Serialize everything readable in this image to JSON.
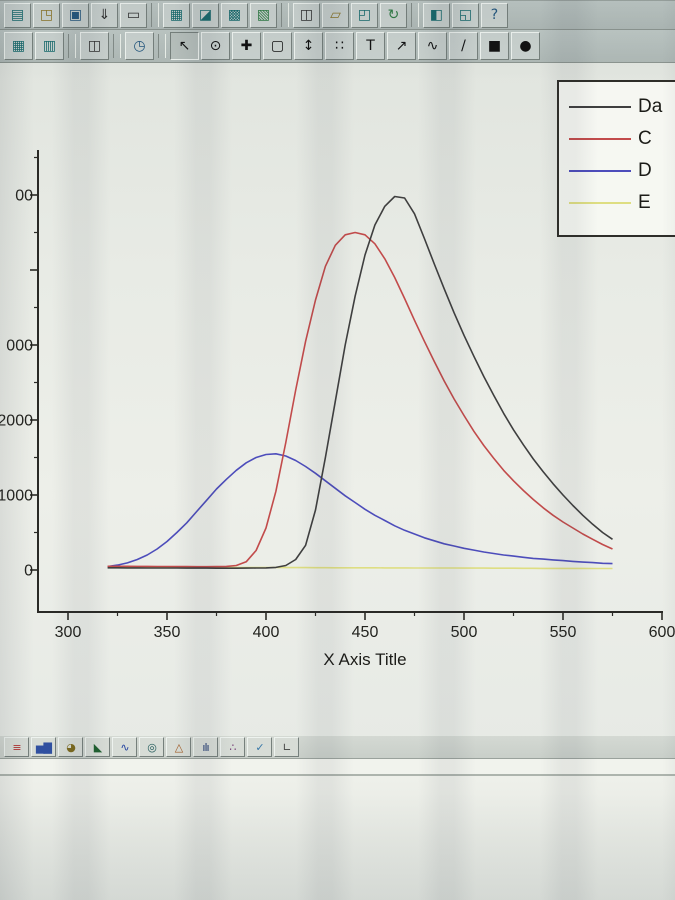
{
  "toolbars": {
    "standard": {
      "buttons": [
        {
          "name": "new-project-button",
          "glyph": "▤",
          "color": "#16696c"
        },
        {
          "name": "open-project-button",
          "glyph": "◳",
          "color": "#8a7428"
        },
        {
          "name": "save-project-button",
          "glyph": "▣",
          "color": "#24577e"
        },
        {
          "name": "import-ascii-button",
          "glyph": "⇓",
          "color": "#2e2e2e"
        },
        {
          "name": "print-button",
          "glyph": "▭",
          "color": "#2e2e2e"
        },
        {
          "sep": true
        },
        {
          "name": "new-worksheet-button",
          "glyph": "▦",
          "color": "#16696c"
        },
        {
          "name": "new-graph-button",
          "glyph": "◪",
          "color": "#16696c"
        },
        {
          "name": "new-matrix-button",
          "glyph": "▩",
          "color": "#16696c"
        },
        {
          "name": "new-excel-button",
          "glyph": "▧",
          "color": "#2f7a44"
        },
        {
          "sep": true
        },
        {
          "name": "copy-button",
          "glyph": "◫",
          "color": "#2e2e2e"
        },
        {
          "name": "paste-button",
          "glyph": "▱",
          "color": "#8a7428"
        },
        {
          "name": "duplicate-button",
          "glyph": "◰",
          "color": "#16696c"
        },
        {
          "name": "refresh-button",
          "glyph": "↻",
          "color": "#2f7a44"
        },
        {
          "sep": true
        },
        {
          "name": "fit-page-button",
          "glyph": "◧",
          "color": "#16696c"
        },
        {
          "name": "full-screen-button",
          "glyph": "◱",
          "color": "#16696c"
        },
        {
          "name": "help-button",
          "glyph": "?",
          "color": "#24577e"
        }
      ]
    },
    "tools": {
      "buttons": [
        {
          "name": "worksheet-grid-button",
          "glyph": "▦",
          "color": "#16696c"
        },
        {
          "name": "column-grid-button",
          "glyph": "▥",
          "color": "#16696c"
        },
        {
          "sep": true
        },
        {
          "name": "new-layout-button",
          "glyph": "◫",
          "color": "#2e2e2e"
        },
        {
          "sep": true
        },
        {
          "name": "recent-clock-button",
          "glyph": "◷",
          "color": "#24577e"
        },
        {
          "sep": true
        },
        {
          "name": "pointer-tool-button",
          "glyph": "↖",
          "color": "#111111",
          "selected": true
        },
        {
          "name": "zoom-tool-button",
          "glyph": "⊙",
          "color": "#111111"
        },
        {
          "name": "data-reader-tool-button",
          "glyph": "✚",
          "color": "#111111"
        },
        {
          "name": "data-selector-tool-button",
          "glyph": "▢",
          "color": "#111111"
        },
        {
          "name": "vertical-translate-tool-button",
          "glyph": "↕",
          "color": "#111111"
        },
        {
          "name": "region-mask-tool-button",
          "glyph": "∷",
          "color": "#111111"
        },
        {
          "name": "text-tool-button",
          "glyph": "T",
          "color": "#111111"
        },
        {
          "name": "draw-arrow-tool-button",
          "glyph": "↗",
          "color": "#111111"
        },
        {
          "name": "draw-curve-tool-button",
          "glyph": "∿",
          "color": "#111111"
        },
        {
          "name": "draw-line-tool-button",
          "glyph": "/",
          "color": "#111111"
        },
        {
          "name": "draw-rectangle-tool-button",
          "glyph": "■",
          "color": "#111111"
        },
        {
          "name": "draw-circle-tool-button",
          "glyph": "●",
          "color": "#111111"
        }
      ]
    },
    "graph": {
      "buttons": [
        {
          "name": "line-plot-button",
          "glyph": "≡",
          "color": "#b03030"
        },
        {
          "name": "column-plot-button",
          "glyph": "▅▇",
          "color": "#3050a0"
        },
        {
          "name": "pie-chart-button",
          "glyph": "◕",
          "color": "#7c6a1e"
        },
        {
          "name": "area-plot-button",
          "glyph": "◣",
          "color": "#206030"
        },
        {
          "name": "spline-plot-button",
          "glyph": "∿",
          "color": "#2040a0"
        },
        {
          "name": "contour-plot-button",
          "glyph": "◎",
          "color": "#1e5858"
        },
        {
          "name": "ternary-plot-button",
          "glyph": "△",
          "color": "#a05820"
        },
        {
          "name": "histogram-plot-button",
          "glyph": "ılı",
          "color": "#203870"
        },
        {
          "name": "scatter-plot-button",
          "glyph": "∴",
          "color": "#6d2f6d"
        },
        {
          "name": "polar-plot-button",
          "glyph": "✓",
          "color": "#3878a8"
        },
        {
          "name": "axes-plot-button",
          "glyph": "∟",
          "color": "#3e3e3e"
        }
      ]
    }
  },
  "chart": {
    "x_axis_title": "X Axis Title",
    "x_ticks": [
      300,
      350,
      400,
      450,
      500,
      550,
      600
    ],
    "y_ticks": [
      {
        "value": 5000,
        "label": "00"
      },
      {
        "value": 4000,
        "label": ""
      },
      {
        "value": 3000,
        "label": "000"
      },
      {
        "value": 2000,
        "label": "2000"
      },
      {
        "value": 1000,
        "label": "1000"
      },
      {
        "value": 0,
        "label": "0"
      }
    ],
    "legend": [
      {
        "label": "Da",
        "color": "#3f3f3f"
      },
      {
        "label": "C",
        "color": "#c24b4b"
      },
      {
        "label": "D",
        "color": "#4d4dbb"
      },
      {
        "label": "E",
        "color": "#dede82"
      }
    ]
  },
  "chart_data": {
    "type": "line",
    "title": "",
    "xlabel": "X Axis Title",
    "ylabel": "",
    "xlim": [
      285,
      601
    ],
    "ylim": [
      -500,
      5600
    ],
    "x_major_ticks": [
      300,
      350,
      400,
      450,
      500,
      550,
      600
    ],
    "y_major_ticks": [
      0,
      1000,
      2000,
      3000,
      4000,
      5000
    ],
    "grid": false,
    "legend_position": "top-right",
    "x": [
      320,
      325,
      330,
      335,
      340,
      345,
      350,
      355,
      360,
      365,
      370,
      375,
      380,
      385,
      390,
      395,
      400,
      405,
      410,
      415,
      420,
      425,
      430,
      435,
      440,
      445,
      450,
      455,
      460,
      465,
      470,
      475,
      480,
      485,
      490,
      495,
      500,
      505,
      510,
      515,
      520,
      525,
      530,
      535,
      540,
      545,
      550,
      555,
      560,
      565,
      570,
      575
    ],
    "series": [
      {
        "name": "Da",
        "color": "#3f3f3f",
        "values": [
          30,
          30,
          28,
          28,
          27,
          27,
          26,
          26,
          25,
          25,
          25,
          24,
          24,
          24,
          25,
          26,
          28,
          35,
          60,
          140,
          330,
          800,
          1500,
          2250,
          3000,
          3650,
          4200,
          4600,
          4850,
          4980,
          4960,
          4750,
          4420,
          4080,
          3750,
          3430,
          3130,
          2850,
          2580,
          2330,
          2090,
          1870,
          1670,
          1480,
          1310,
          1150,
          1000,
          860,
          730,
          610,
          500,
          410
        ]
      },
      {
        "name": "C",
        "color": "#c24b4b",
        "values": [
          50,
          50,
          50,
          48,
          48,
          47,
          46,
          45,
          45,
          44,
          44,
          45,
          48,
          60,
          110,
          260,
          560,
          1050,
          1700,
          2400,
          3050,
          3600,
          4050,
          4330,
          4470,
          4500,
          4470,
          4350,
          4150,
          3900,
          3620,
          3330,
          3050,
          2780,
          2520,
          2280,
          2060,
          1850,
          1660,
          1490,
          1330,
          1190,
          1060,
          940,
          830,
          730,
          640,
          560,
          480,
          410,
          340,
          280
        ]
      },
      {
        "name": "D",
        "color": "#4d4dbb",
        "values": [
          45,
          65,
          95,
          140,
          200,
          280,
          380,
          500,
          630,
          780,
          930,
          1080,
          1210,
          1330,
          1430,
          1500,
          1540,
          1550,
          1520,
          1460,
          1380,
          1290,
          1190,
          1090,
          990,
          900,
          810,
          730,
          660,
          590,
          530,
          480,
          430,
          390,
          350,
          320,
          290,
          265,
          240,
          220,
          200,
          185,
          170,
          155,
          145,
          135,
          125,
          115,
          105,
          98,
          90,
          85
        ]
      },
      {
        "name": "E",
        "color": "#dede82",
        "values": [
          40,
          40,
          40,
          40,
          38,
          38,
          38,
          36,
          36,
          36,
          35,
          35,
          35,
          34,
          34,
          34,
          33,
          33,
          32,
          32,
          32,
          31,
          31,
          30,
          30,
          30,
          29,
          29,
          28,
          28,
          28,
          27,
          27,
          26,
          26,
          26,
          25,
          25,
          25,
          24,
          24,
          24,
          23,
          23,
          22,
          22,
          22,
          21,
          21,
          20,
          20,
          20
        ]
      }
    ]
  }
}
